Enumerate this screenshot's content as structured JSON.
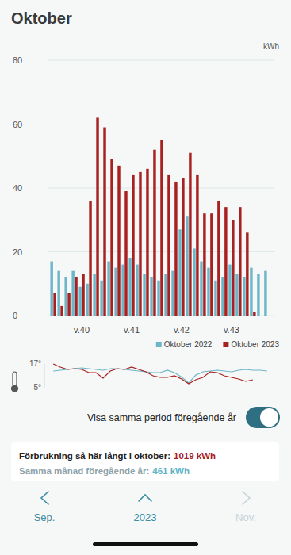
{
  "header": {
    "title": "Oktober"
  },
  "chart_data": [
    {
      "type": "bar",
      "y_label": "kWh",
      "categories": [
        null,
        null,
        null,
        null,
        "v.40",
        null,
        null,
        null,
        null,
        null,
        null,
        "v.41",
        null,
        null,
        null,
        null,
        null,
        null,
        "v.42",
        null,
        null,
        null,
        null,
        null,
        null,
        "v.43",
        null,
        null,
        null,
        null,
        null
      ],
      "series": [
        {
          "name": "Oktober 2022",
          "color": "#6cb6c8",
          "values": [
            17,
            14,
            12,
            14,
            9,
            10,
            13,
            11,
            17,
            15,
            16,
            18,
            16,
            13,
            12,
            11,
            13,
            14,
            27,
            31,
            21,
            17,
            15,
            11,
            12,
            16,
            13,
            12,
            15,
            13,
            14
          ]
        },
        {
          "name": "Oktober 2023",
          "color": "#a8201f",
          "values": [
            7,
            3,
            7,
            12,
            13,
            36,
            62,
            59,
            49,
            47,
            39,
            44,
            45,
            46,
            52,
            55,
            44,
            42,
            43,
            51,
            44,
            32,
            32,
            36,
            34,
            30,
            34,
            26,
            1,
            null,
            null
          ]
        }
      ],
      "ylim": [
        0,
        80
      ],
      "yticks": [
        0,
        20,
        40,
        60,
        80
      ],
      "grid": true,
      "legend": "bottom-right"
    },
    {
      "type": "line",
      "categories": [
        null,
        null,
        null,
        null,
        null,
        null,
        null,
        null,
        null,
        null,
        null,
        null,
        null,
        null,
        null,
        null,
        null,
        null,
        null,
        null,
        null,
        null,
        null,
        null,
        null,
        null,
        null,
        null,
        null,
        null,
        null
      ],
      "series": [
        {
          "color": "#6cb6c8",
          "values": [
            13,
            13.4,
            13.8,
            14.2,
            14.6,
            14.2,
            13.8,
            13.4,
            14.2,
            14.2,
            13.8,
            13.4,
            13,
            12.6,
            12.2,
            12.2,
            13.4,
            12.2,
            10,
            7,
            11,
            12.6,
            13,
            13.4,
            13,
            12.6,
            13.4,
            13.8,
            13.4,
            13.4,
            13
          ]
        },
        {
          "color": "#a8201f",
          "values": [
            16.6,
            15,
            13.8,
            14.2,
            13.8,
            12.2,
            12.2,
            9.4,
            13,
            14.2,
            13.8,
            15,
            13.8,
            12.6,
            10.6,
            9.8,
            9.8,
            10.6,
            9,
            6.6,
            8.6,
            9.8,
            12.6,
            12.2,
            10.6,
            9.8,
            9,
            7.8,
            8.6,
            null,
            null
          ]
        }
      ],
      "ylim": [
        5,
        17
      ],
      "yticks": [
        {
          "value": 17,
          "label": "17°"
        },
        {
          "value": 5,
          "label": "5°"
        }
      ],
      "tick_labels": "y"
    }
  ],
  "toggle": {
    "label": "Visa samma period föregående år",
    "on": true
  },
  "summary": {
    "current": {
      "label": "Förbrukning så här långt i oktober:",
      "value": "1019 kWh"
    },
    "previous": {
      "label": "Samma månad föregående år:",
      "value": "461 kWh"
    }
  },
  "navigation": {
    "previous": "Sep.",
    "current": "2023",
    "next": "Nov."
  }
}
